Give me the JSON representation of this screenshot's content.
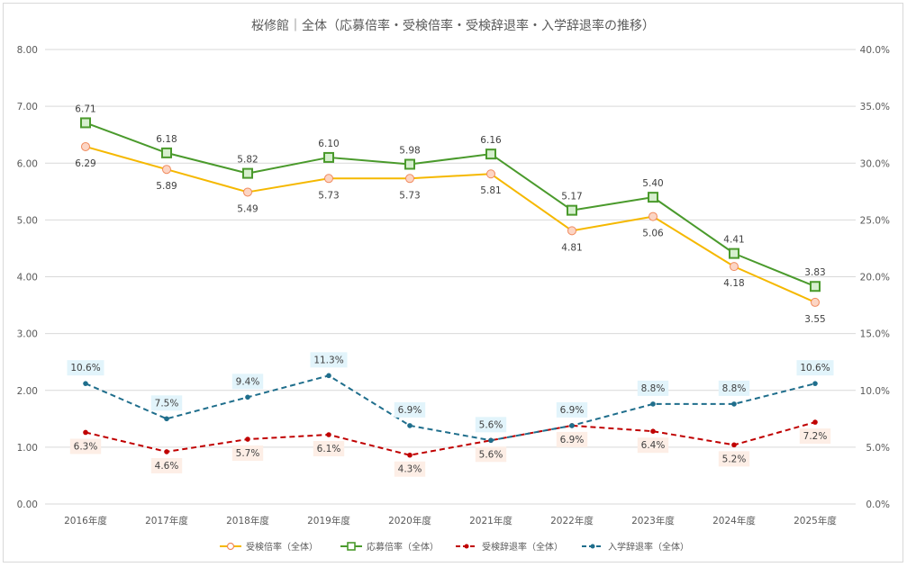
{
  "chart_data": {
    "type": "line",
    "title": "桜修館｜全体（応募倍率・受検倍率・受検辞退率・入学辞退率の推移）",
    "categories": [
      "2016年度",
      "2017年度",
      "2018年度",
      "2019年度",
      "2020年度",
      "2021年度",
      "2022年度",
      "2023年度",
      "2024年度",
      "2025年度"
    ],
    "y_left": {
      "ylim": [
        0,
        8
      ],
      "ticks": [
        "0.00",
        "1.00",
        "2.00",
        "3.00",
        "4.00",
        "5.00",
        "6.00",
        "7.00",
        "8.00"
      ]
    },
    "y_right": {
      "ylim": [
        0,
        40
      ],
      "ticks": [
        "0.0%",
        "5.0%",
        "10.0%",
        "15.0%",
        "20.0%",
        "25.0%",
        "30.0%",
        "35.0%",
        "40.0%"
      ]
    },
    "grid": true,
    "legend_position": "bottom",
    "series": [
      {
        "name": "受検倍率（全体）",
        "axis": "left",
        "color": "#f5b800",
        "marker": "circle",
        "marker_fill": "#fcd5c4",
        "marker_stroke": "#f08a5d",
        "dash": false,
        "values": [
          6.29,
          5.89,
          5.49,
          5.73,
          5.73,
          5.81,
          4.81,
          5.06,
          4.18,
          3.55
        ],
        "labels": [
          "6.29",
          "5.89",
          "5.49",
          "5.73",
          "5.73",
          "5.81",
          "4.81",
          "5.06",
          "4.18",
          "3.55"
        ],
        "label_position": "below"
      },
      {
        "name": "応募倍率（全体）",
        "axis": "left",
        "color": "#4a9a2c",
        "marker": "square",
        "marker_fill": "#d6efce",
        "marker_stroke": "#4a9a2c",
        "dash": false,
        "values": [
          6.71,
          6.18,
          5.82,
          6.1,
          5.98,
          6.16,
          5.17,
          5.4,
          4.41,
          3.83
        ],
        "labels": [
          "6.71",
          "6.18",
          "5.82",
          "6.10",
          "5.98",
          "6.16",
          "5.17",
          "5.40",
          "4.41",
          "3.83"
        ],
        "label_position": "above"
      },
      {
        "name": "受検辞退率（全体）",
        "axis": "right",
        "color": "#c00000",
        "marker": "dot",
        "dash": true,
        "values": [
          6.3,
          4.6,
          5.7,
          6.1,
          4.3,
          5.6,
          6.9,
          6.4,
          5.2,
          7.2
        ],
        "labels": [
          "6.3%",
          "4.6%",
          "5.7%",
          "6.1%",
          "4.3%",
          "5.6%",
          "6.9%",
          "6.4%",
          "5.2%",
          "7.2%"
        ],
        "label_position": "below",
        "label_bg": "#fdeee6"
      },
      {
        "name": "入学辞退率（全体）",
        "axis": "right",
        "color": "#1f6e8c",
        "marker": "dot",
        "dash": true,
        "values": [
          10.6,
          7.5,
          9.4,
          11.3,
          6.9,
          5.6,
          6.9,
          8.8,
          8.8,
          10.6
        ],
        "labels": [
          "10.6%",
          "7.5%",
          "9.4%",
          "11.3%",
          "6.9%",
          "5.6%",
          "6.9%",
          "8.8%",
          "8.8%",
          "10.6%"
        ],
        "label_position": "above",
        "label_bg": "#e2f4fb"
      }
    ]
  }
}
